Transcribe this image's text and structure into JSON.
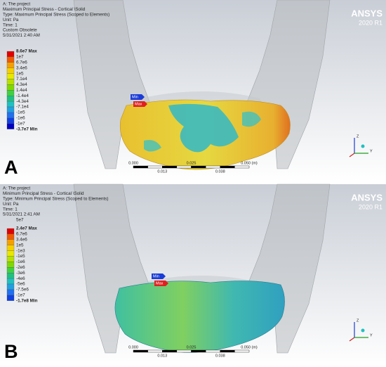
{
  "logo": {
    "name": "ANSYS",
    "version": "2020 R1"
  },
  "scale": {
    "top": [
      "0.000",
      "0.025",
      "0.050 (m)"
    ],
    "bottom": [
      "0.013",
      "0.038"
    ]
  },
  "axes": [
    "Z",
    "Y"
  ],
  "panels": [
    {
      "letter": "A",
      "header": [
        "A: The project",
        "Maximum Principal Stress - Cortical \\Solid",
        "Type: Maximum Principal Stress (Scoped to Elements)",
        "Unit: Pa",
        "Time: 1",
        "Custom Obsolete",
        "5/31/2021 2:40 AM"
      ],
      "legend": [
        "8.6e7 Max",
        "1e7",
        "6.7e6",
        "3.4e6",
        "1e5",
        "7.1e4",
        "4.3e4",
        "1.4e4",
        "-1.4e4",
        "-4.3e4",
        "-7.1e4",
        "-1e5",
        "-1e6",
        "-1e7",
        "-3.7e7 Min"
      ],
      "markers": {
        "min": "Min",
        "max": "Max"
      }
    },
    {
      "letter": "B",
      "header": [
        "A: The project",
        "Minimum Principal Stress - Cortical \\Solid",
        "Type: Minimum Principal Stress (Scoped to Elements)",
        "Unit: Pa",
        "Time: 1",
        "5/31/2021 2:41 AM"
      ],
      "legend_top": "5e7",
      "legend": [
        "2.4e7 Max",
        "6.7e6",
        "3.4e6",
        "1e5",
        "-1e3",
        "-1e5",
        "-1e6",
        "-2e6",
        "-3e6",
        "-4e6",
        "-5e6",
        "-7.5e6",
        "-1e7",
        "-1.7e8 Min"
      ],
      "markers": {
        "min": "Min",
        "max": "Max"
      }
    }
  ]
}
